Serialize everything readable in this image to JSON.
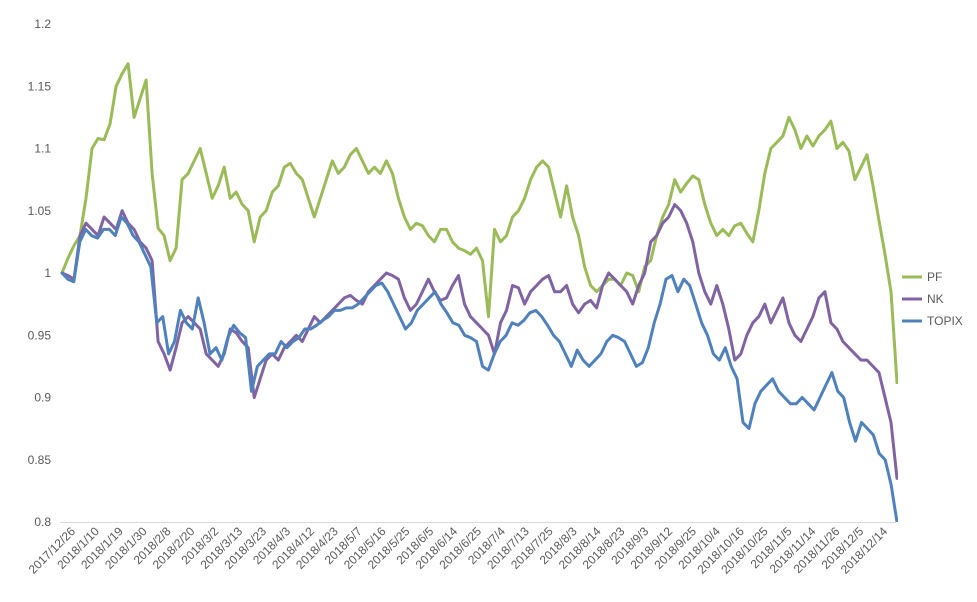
{
  "chart_data": {
    "type": "line",
    "ylim": [
      0.8,
      1.2
    ],
    "yticks": [
      "0.8",
      "0.85",
      "0.9",
      "0.95",
      "1",
      "1.05",
      "1.1",
      "1.15",
      "1.2"
    ],
    "xticks": [
      "2017/12/26",
      "2018/1/10",
      "2018/1/19",
      "2018/1/30",
      "2018/2/8",
      "2018/2/20",
      "2018/3/2",
      "2018/3/13",
      "2018/3/23",
      "2018/4/3",
      "2018/4/12",
      "2018/4/23",
      "2018/5/7",
      "2018/5/16",
      "2018/5/25",
      "2018/6/5",
      "2018/6/14",
      "2018/6/25",
      "2018/7/4",
      "2018/7/13",
      "2018/7/25",
      "2018/8/3",
      "2018/8/14",
      "2018/8/23",
      "2018/9/3",
      "2018/9/12",
      "2018/9/25",
      "2018/10/4",
      "2018/10/16",
      "2018/10/25",
      "2018/11/5",
      "2018/11/14",
      "2018/11/26",
      "2018/12/5",
      "2018/12/14"
    ],
    "grid": false,
    "legend_position": "right",
    "series": [
      {
        "name": "PF",
        "color": "#9BBB59",
        "values": [
          1.0,
          1.012,
          1.022,
          1.03,
          1.06,
          1.1,
          1.108,
          1.107,
          1.12,
          1.15,
          1.16,
          1.168,
          1.125,
          1.14,
          1.155,
          1.08,
          1.036,
          1.03,
          1.01,
          1.02,
          1.075,
          1.08,
          1.09,
          1.1,
          1.08,
          1.06,
          1.07,
          1.085,
          1.06,
          1.065,
          1.055,
          1.05,
          1.025,
          1.045,
          1.05,
          1.065,
          1.07,
          1.085,
          1.088,
          1.08,
          1.075,
          1.06,
          1.045,
          1.06,
          1.075,
          1.09,
          1.08,
          1.085,
          1.095,
          1.1,
          1.09,
          1.08,
          1.085,
          1.08,
          1.09,
          1.08,
          1.06,
          1.045,
          1.035,
          1.04,
          1.038,
          1.03,
          1.025,
          1.035,
          1.035,
          1.025,
          1.02,
          1.018,
          1.015,
          1.02,
          1.01,
          0.965,
          1.035,
          1.025,
          1.03,
          1.045,
          1.05,
          1.06,
          1.075,
          1.085,
          1.09,
          1.085,
          1.065,
          1.045,
          1.07,
          1.045,
          1.03,
          1.005,
          0.99,
          0.985,
          0.99,
          0.995,
          0.995,
          0.99,
          1.0,
          0.998,
          0.985,
          1.005,
          1.01,
          1.03,
          1.045,
          1.055,
          1.075,
          1.065,
          1.072,
          1.078,
          1.075,
          1.055,
          1.04,
          1.03,
          1.035,
          1.03,
          1.038,
          1.04,
          1.032,
          1.025,
          1.05,
          1.08,
          1.1,
          1.105,
          1.11,
          1.125,
          1.115,
          1.1,
          1.11,
          1.102,
          1.11,
          1.115,
          1.122,
          1.1,
          1.105,
          1.098,
          1.075,
          1.085,
          1.095,
          1.07,
          1.042,
          1.015,
          0.985,
          0.912
        ]
      },
      {
        "name": "NK",
        "color": "#8064A2",
        "values": [
          1.0,
          0.998,
          0.995,
          1.03,
          1.04,
          1.035,
          1.03,
          1.045,
          1.04,
          1.035,
          1.05,
          1.04,
          1.035,
          1.025,
          1.02,
          1.01,
          0.945,
          0.935,
          0.922,
          0.94,
          0.96,
          0.965,
          0.96,
          0.955,
          0.935,
          0.93,
          0.925,
          0.935,
          0.955,
          0.952,
          0.945,
          0.94,
          0.9,
          0.915,
          0.93,
          0.935,
          0.93,
          0.94,
          0.945,
          0.95,
          0.945,
          0.955,
          0.965,
          0.96,
          0.965,
          0.97,
          0.975,
          0.98,
          0.982,
          0.978,
          0.975,
          0.985,
          0.99,
          0.995,
          1.0,
          0.998,
          0.995,
          0.98,
          0.97,
          0.975,
          0.985,
          0.995,
          0.985,
          0.978,
          0.98,
          0.99,
          0.998,
          0.975,
          0.965,
          0.96,
          0.955,
          0.95,
          0.935,
          0.96,
          0.97,
          0.99,
          0.988,
          0.975,
          0.985,
          0.99,
          0.995,
          0.998,
          0.985,
          0.985,
          0.99,
          0.975,
          0.968,
          0.975,
          0.978,
          0.972,
          0.99,
          1.0,
          0.995,
          0.99,
          0.985,
          0.975,
          0.99,
          1.0,
          1.025,
          1.03,
          1.04,
          1.045,
          1.055,
          1.05,
          1.04,
          1.025,
          1.0,
          0.985,
          0.975,
          0.99,
          0.975,
          0.955,
          0.93,
          0.935,
          0.95,
          0.96,
          0.965,
          0.975,
          0.96,
          0.97,
          0.98,
          0.96,
          0.95,
          0.945,
          0.955,
          0.965,
          0.98,
          0.985,
          0.96,
          0.955,
          0.945,
          0.94,
          0.935,
          0.93,
          0.93,
          0.925,
          0.92,
          0.9,
          0.88,
          0.835
        ]
      },
      {
        "name": "TOPIX",
        "color": "#4F81BD",
        "values": [
          1.0,
          0.995,
          0.993,
          1.025,
          1.035,
          1.03,
          1.028,
          1.035,
          1.035,
          1.03,
          1.045,
          1.04,
          1.03,
          1.025,
          1.015,
          1.005,
          0.96,
          0.965,
          0.935,
          0.945,
          0.97,
          0.96,
          0.955,
          0.98,
          0.96,
          0.935,
          0.94,
          0.93,
          0.948,
          0.958,
          0.952,
          0.948,
          0.905,
          0.925,
          0.93,
          0.935,
          0.935,
          0.945,
          0.94,
          0.945,
          0.948,
          0.955,
          0.955,
          0.958,
          0.962,
          0.965,
          0.97,
          0.97,
          0.972,
          0.972,
          0.975,
          0.98,
          0.985,
          0.99,
          0.992,
          0.985,
          0.975,
          0.965,
          0.955,
          0.96,
          0.97,
          0.975,
          0.98,
          0.985,
          0.975,
          0.968,
          0.96,
          0.958,
          0.95,
          0.948,
          0.945,
          0.925,
          0.922,
          0.935,
          0.945,
          0.95,
          0.96,
          0.958,
          0.962,
          0.968,
          0.97,
          0.965,
          0.958,
          0.95,
          0.945,
          0.935,
          0.925,
          0.938,
          0.93,
          0.925,
          0.93,
          0.935,
          0.945,
          0.95,
          0.948,
          0.945,
          0.935,
          0.925,
          0.928,
          0.94,
          0.96,
          0.975,
          0.995,
          0.998,
          0.985,
          0.995,
          0.99,
          0.975,
          0.96,
          0.95,
          0.935,
          0.93,
          0.94,
          0.925,
          0.915,
          0.88,
          0.875,
          0.895,
          0.905,
          0.91,
          0.915,
          0.905,
          0.9,
          0.895,
          0.895,
          0.9,
          0.895,
          0.89,
          0.9,
          0.91,
          0.92,
          0.905,
          0.9,
          0.88,
          0.865,
          0.88,
          0.875,
          0.87,
          0.855,
          0.85,
          0.83,
          0.8
        ]
      }
    ]
  }
}
